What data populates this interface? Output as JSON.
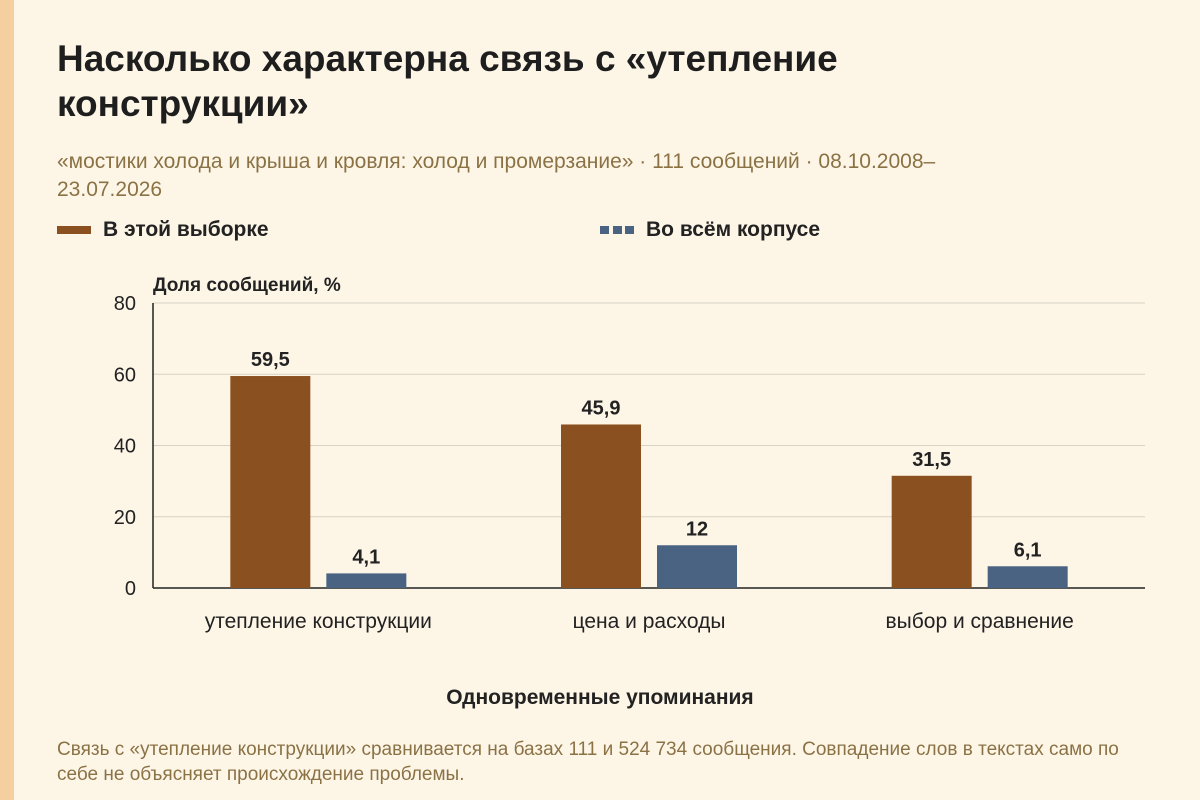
{
  "title": "Насколько характерна связь с «утепление конструкции»",
  "subtitle": "«мостики холода и крыша и кровля: холод и промерзание» · 111 сообщений · 08.10.2008–23.07.2026",
  "legend": [
    {
      "label": "В этой выборке",
      "color": "#8b5020"
    },
    {
      "label": "Во всём корпусе",
      "color": "#4a6382"
    }
  ],
  "footnote": "Связь с «утепление конструкции» сравнивается на базах 111 и 524 734 сообщения. Совпадение слов в текстах само по себе не объясняет происхождение проблемы.",
  "chart_data": {
    "type": "bar",
    "title": "Насколько характерна связь с «утепление конструкции»",
    "ylabel": "Доля сообщений, %",
    "xlabel": "Одновременные упоминания",
    "categories": [
      "утепление конструкции",
      "цена и расходы",
      "выбор и сравнение"
    ],
    "series": [
      {
        "name": "В этой выборке",
        "color": "#8b5020",
        "values": [
          59.5,
          45.9,
          31.5
        ],
        "labels": [
          "59,5",
          "45,9",
          "31,5"
        ]
      },
      {
        "name": "Во всём корпусе",
        "color": "#4a6382",
        "values": [
          4.1,
          12,
          6.1
        ],
        "labels": [
          "4,1",
          "12",
          "6,1"
        ]
      }
    ],
    "ylim": [
      0,
      80
    ],
    "yticks": [
      0,
      20,
      40,
      60,
      80
    ],
    "grid": true,
    "legend_position": "top"
  }
}
